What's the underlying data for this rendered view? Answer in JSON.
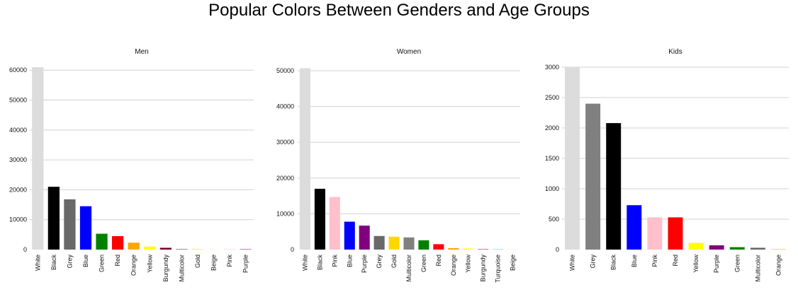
{
  "title": "Popular Colors Between Genders and Age Groups",
  "chart_data": [
    {
      "type": "bar",
      "title": "Men",
      "categories": [
        "White",
        "Black",
        "Grey",
        "Blue",
        "Green",
        "Red",
        "Orange",
        "Yellow",
        "Burgundy",
        "Multicolor",
        "Gold",
        "Beige",
        "Pink",
        "Purple"
      ],
      "values": [
        61000,
        21000,
        16800,
        14500,
        5300,
        4500,
        2300,
        1000,
        600,
        200,
        120,
        80,
        60,
        40
      ],
      "colors": [
        "#dcdcdc",
        "#000000",
        "#696969",
        "#0000ff",
        "#008000",
        "#ff0000",
        "#ffa500",
        "#ffff00",
        "#800020",
        "#808080",
        "#ffd700",
        "#f5f5dc",
        "#ffc0cb",
        "#800080"
      ],
      "yticks": [
        0,
        10000,
        20000,
        30000,
        40000,
        50000,
        60000
      ],
      "ylim": [
        0,
        61000
      ],
      "grid": true
    },
    {
      "type": "bar",
      "title": "Women",
      "categories": [
        "White",
        "Black",
        "Pink",
        "Blue",
        "Purple",
        "Grey",
        "Gold",
        "Multicolor",
        "Green",
        "Red",
        "Orange",
        "Yellow",
        "Burgundy",
        "Turquoise",
        "Beige"
      ],
      "values": [
        50700,
        17000,
        14700,
        7800,
        6700,
        3800,
        3600,
        3400,
        2600,
        1500,
        400,
        300,
        100,
        80,
        50
      ],
      "colors": [
        "#dcdcdc",
        "#000000",
        "#ffc0cb",
        "#0000ff",
        "#800080",
        "#696969",
        "#ffd700",
        "#808080",
        "#008000",
        "#ff0000",
        "#ffa500",
        "#ffff00",
        "#800020",
        "#40e0d0",
        "#f5f5dc"
      ],
      "yticks": [
        0,
        10000,
        20000,
        30000,
        40000,
        50000
      ],
      "ylim": [
        0,
        51000
      ],
      "grid": true
    },
    {
      "type": "bar",
      "title": "Kids",
      "categories": [
        "White",
        "Grey",
        "Black",
        "Blue",
        "Pink",
        "Red",
        "Yellow",
        "Purple",
        "Green",
        "Multicolor",
        "Orange"
      ],
      "values": [
        3000,
        2400,
        2080,
        730,
        530,
        530,
        110,
        70,
        40,
        30,
        5
      ],
      "colors": [
        "#dcdcdc",
        "#808080",
        "#000000",
        "#0000ff",
        "#ffc0cb",
        "#ff0000",
        "#ffff00",
        "#800080",
        "#008000",
        "#696969",
        "#ffa500"
      ],
      "yticks": [
        0,
        500,
        1000,
        1500,
        2000,
        2500,
        3000
      ],
      "ylim": [
        0,
        3000
      ],
      "grid": true
    }
  ]
}
